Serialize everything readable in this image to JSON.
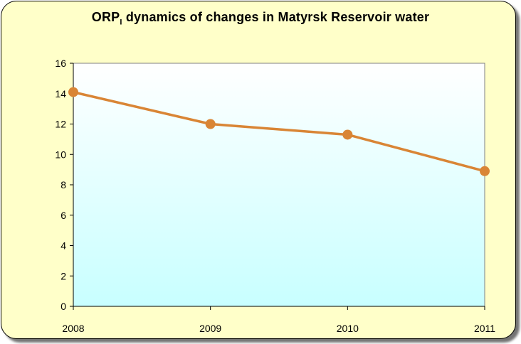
{
  "chart_data": {
    "type": "line",
    "title": {
      "prefix": "ORP",
      "subscript": "I",
      "suffix": " dynamics  of changes in Matyrsk  Reservoir water"
    },
    "xlabel": "",
    "ylabel": "",
    "categories": [
      "2008",
      "2009",
      "2010",
      "2011"
    ],
    "series": [
      {
        "values": [
          14.1,
          12.0,
          11.3,
          8.9
        ]
      }
    ],
    "ylim": [
      0,
      16
    ],
    "yticks": [
      0,
      2,
      4,
      6,
      8,
      10,
      12,
      14,
      16
    ],
    "grid": false,
    "legend": "none"
  },
  "colors": {
    "background": "#ffffc9",
    "plot_top": "#ffffff",
    "plot_bottom": "#c8ffff",
    "line": "#d98535",
    "marker": "#d98535"
  }
}
